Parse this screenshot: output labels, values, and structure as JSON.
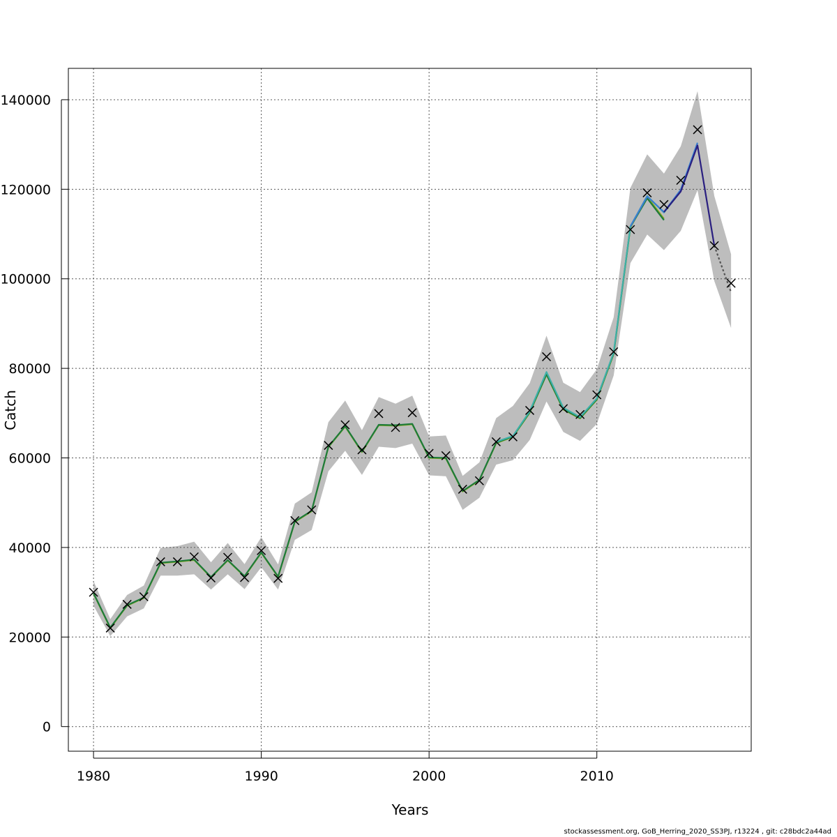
{
  "chart_data": {
    "type": "line",
    "title": "",
    "xlabel": "Years",
    "ylabel": "Catch",
    "xlim": [
      1978.5,
      2019.2
    ],
    "ylim": [
      -5500,
      147000
    ],
    "xticks": [
      1980,
      1990,
      2000,
      2010
    ],
    "yticks": [
      0,
      20000,
      40000,
      60000,
      80000,
      100000,
      120000,
      140000
    ],
    "grid": true,
    "legend": "none",
    "observed": {
      "x": [
        1980,
        1981,
        1982,
        1983,
        1984,
        1985,
        1986,
        1987,
        1988,
        1989,
        1990,
        1991,
        1992,
        1993,
        1994,
        1995,
        1996,
        1997,
        1998,
        1999,
        2000,
        2001,
        2002,
        2003,
        2004,
        2005,
        2006,
        2007,
        2008,
        2009,
        2010,
        2011,
        2012,
        2013,
        2014,
        2015,
        2016,
        2017,
        2018
      ],
      "y": [
        30000,
        22000,
        27300,
        29000,
        36800,
        36800,
        37900,
        33200,
        37800,
        33300,
        39300,
        33100,
        46000,
        48400,
        62800,
        67400,
        61800,
        69900,
        66800,
        70100,
        61000,
        60500,
        53000,
        54900,
        63600,
        64700,
        70600,
        82600,
        71000,
        69700,
        74100,
        83700,
        111000,
        119200,
        116600,
        122000,
        133300,
        107400,
        99000
      ]
    },
    "ci_band": {
      "x": [
        1980,
        1981,
        1982,
        1983,
        1984,
        1985,
        1986,
        1987,
        1988,
        1989,
        1990,
        1991,
        1992,
        1993,
        1994,
        1995,
        1996,
        1997,
        1998,
        1999,
        2000,
        2001,
        2002,
        2003,
        2004,
        2005,
        2006,
        2007,
        2008,
        2009,
        2010,
        2011,
        2012,
        2013,
        2014,
        2015,
        2016,
        2017,
        2018
      ],
      "lower": [
        27000,
        20200,
        24600,
        26400,
        33700,
        33700,
        34000,
        30600,
        34000,
        30700,
        35600,
        30600,
        41700,
        43900,
        57000,
        61600,
        56200,
        62500,
        62200,
        63200,
        56100,
        55900,
        48400,
        51100,
        58500,
        59500,
        64000,
        72600,
        65800,
        63800,
        67600,
        78400,
        103500,
        109900,
        106400,
        110700,
        119800,
        99500,
        89000
      ],
      "upper": [
        32500,
        24000,
        29400,
        31500,
        39900,
        40300,
        41300,
        36700,
        41000,
        36300,
        42300,
        36200,
        49800,
        52300,
        68000,
        72800,
        66200,
        73600,
        72100,
        73900,
        64800,
        65000,
        56000,
        59000,
        68900,
        71600,
        76700,
        87300,
        76800,
        74700,
        79800,
        91400,
        120300,
        127800,
        123500,
        129600,
        141900,
        118500,
        105500
      ]
    },
    "series": [
      {
        "name": "",
        "color": "#8fae20",
        "x": [
          1980,
          1981,
          1982,
          1983,
          1984,
          1985,
          1986,
          1987,
          1988,
          1989,
          1990,
          1991,
          1992,
          1993,
          1994,
          1995,
          1996,
          1997,
          1998,
          1999,
          2000,
          2001,
          2002,
          2003,
          2004,
          2005,
          2006,
          2007,
          2008,
          2009,
          2010,
          2011,
          2012,
          2013,
          2014
        ],
        "y": [
          29700,
          22000,
          27000,
          28700,
          36500,
          36800,
          37200,
          33300,
          37100,
          33500,
          38800,
          33400,
          45700,
          48100,
          62400,
          67000,
          61300,
          67300,
          67200,
          67500,
          60000,
          59900,
          52500,
          55000,
          63300,
          64700,
          70100,
          78600,
          70800,
          68800,
          73000,
          83200,
          111500,
          118300,
          113400
        ]
      },
      {
        "name": "",
        "color": "#1d7a3a",
        "x": [
          1980,
          1981,
          1982,
          1983,
          1984,
          1985,
          1986,
          1987,
          1988,
          1989,
          1990,
          1991,
          1992,
          1993,
          1994,
          1995,
          1996,
          1997,
          1998,
          1999,
          2000,
          2001,
          2002,
          2003,
          2004,
          2005,
          2006,
          2007,
          2008,
          2009,
          2010,
          2011,
          2012,
          2013,
          2014
        ],
        "y": [
          29800,
          22100,
          27100,
          28800,
          36600,
          36900,
          37300,
          33400,
          37200,
          33600,
          38900,
          33500,
          45800,
          48200,
          62500,
          67100,
          61400,
          67400,
          67300,
          67600,
          60100,
          60000,
          52600,
          55100,
          63400,
          64800,
          70200,
          78700,
          70900,
          68900,
          73100,
          83300,
          111600,
          118000,
          113100
        ]
      },
      {
        "name": "",
        "color": "#3fb0a8",
        "x": [
          2004,
          2005,
          2006,
          2007,
          2008,
          2009,
          2010,
          2011,
          2012,
          2013,
          2014,
          2015
        ],
        "y": [
          63600,
          64900,
          70400,
          79200,
          71200,
          69100,
          73300,
          83500,
          111700,
          118500,
          114800,
          119600
        ]
      },
      {
        "name": "",
        "color": "#3a7fd0",
        "x": [
          2012,
          2013,
          2014,
          2015,
          2016
        ],
        "y": [
          111700,
          118400,
          114900,
          119900,
          130400
        ]
      },
      {
        "name": "",
        "color": "#2a1f80",
        "x": [
          2014,
          2015,
          2016,
          2017
        ],
        "y": [
          114900,
          119500,
          129800,
          107400
        ]
      },
      {
        "name": "",
        "color": "#555555",
        "dashed": true,
        "x": [
          2017,
          2018
        ],
        "y": [
          107400,
          97000
        ]
      }
    ]
  },
  "footer": "stockassessment.org, GoB_Herring_2020_SS3PJ, r13224 , git: c28bdc2a44ad"
}
